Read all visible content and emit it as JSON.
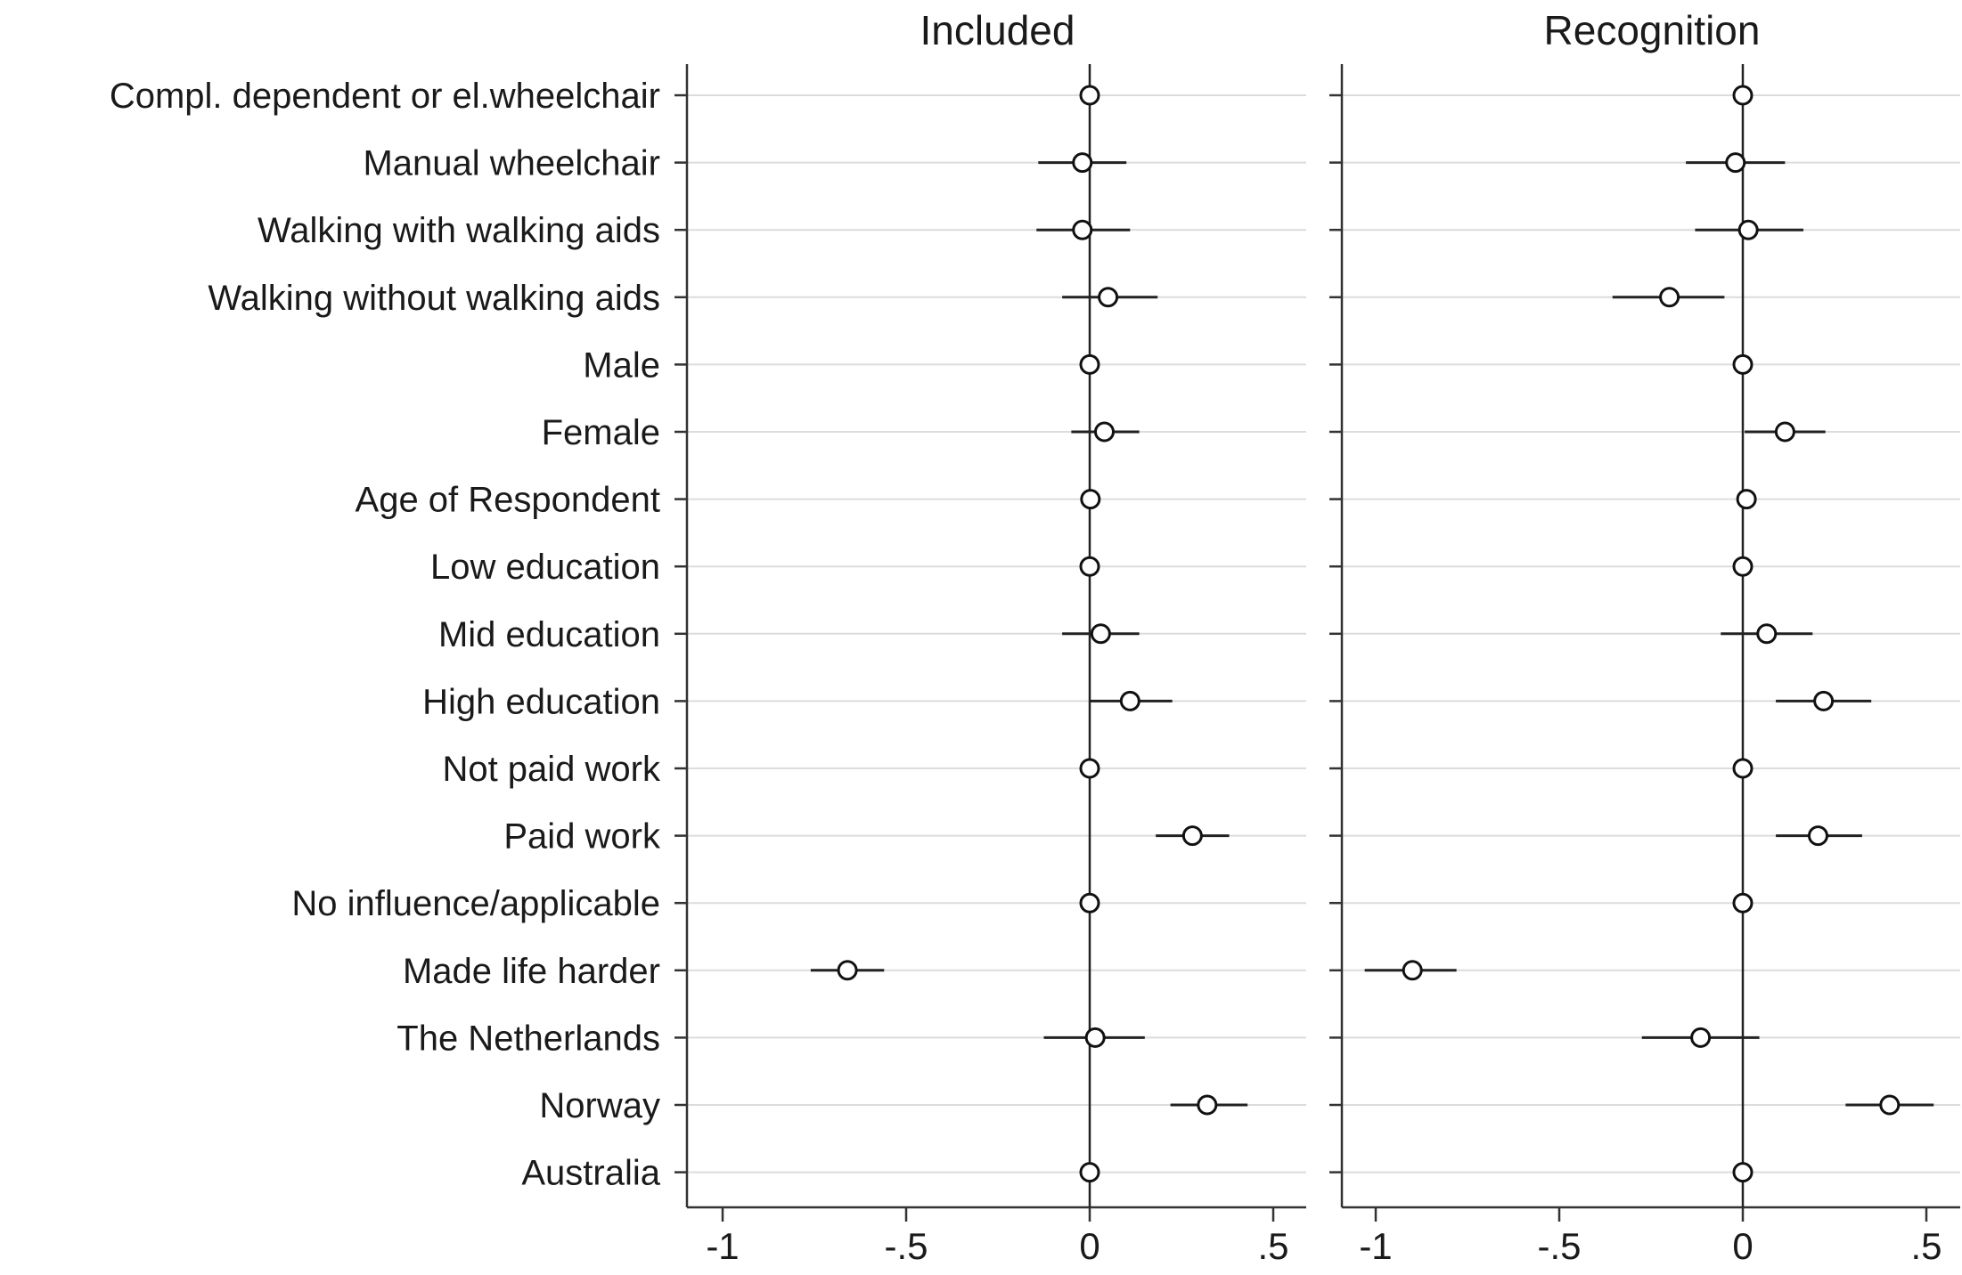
{
  "chart_data": {
    "type": "scatter",
    "subtype": "coefficient-plot",
    "categories": [
      "Compl. dependent or el.wheelchair",
      "Manual wheelchair",
      "Walking with walking aids",
      "Walking without walking aids",
      "Male",
      "Female",
      "Age of Respondent",
      "Low education",
      "Mid education",
      "High education",
      "Not paid work",
      "Paid work",
      "No influence/applicable",
      "Made life harder",
      "The Netherlands",
      "Norway",
      "Australia"
    ],
    "xlim": [
      -1.1,
      0.6
    ],
    "x_ticks": [
      -1,
      -0.5,
      0,
      0.5
    ],
    "x_tick_labels": [
      "-1",
      "-.5",
      "0",
      ".5"
    ],
    "grid": true,
    "reference_line": 0,
    "panels": [
      {
        "title": "Included",
        "estimates": [
          0,
          -0.02,
          -0.02,
          0.05,
          0,
          0.04,
          0.002,
          0,
          0.03,
          0.11,
          0,
          0.28,
          0,
          -0.66,
          0.015,
          0.32,
          0
        ],
        "ci_low": [
          0,
          -0.14,
          -0.145,
          -0.075,
          0,
          -0.05,
          -0.005,
          0,
          -0.075,
          0,
          0,
          0.18,
          0,
          -0.76,
          -0.125,
          0.22,
          0
        ],
        "ci_high": [
          0,
          0.1,
          0.11,
          0.185,
          0,
          0.135,
          0.01,
          0,
          0.135,
          0.225,
          0,
          0.38,
          0,
          -0.56,
          0.15,
          0.43,
          0
        ]
      },
      {
        "title": "Recognition",
        "estimates": [
          0,
          -0.02,
          0.015,
          -0.2,
          0,
          0.115,
          0.01,
          0,
          0.065,
          0.22,
          0,
          0.205,
          0,
          -0.9,
          -0.115,
          0.4,
          0
        ],
        "ci_low": [
          0,
          -0.155,
          -0.13,
          -0.355,
          0,
          0.005,
          0.003,
          0,
          -0.06,
          0.09,
          0,
          0.09,
          0,
          -1.03,
          -0.275,
          0.28,
          0
        ],
        "ci_high": [
          0,
          0.115,
          0.165,
          -0.05,
          0,
          0.225,
          0.017,
          0,
          0.19,
          0.35,
          0,
          0.325,
          0,
          -0.78,
          0.045,
          0.52,
          0
        ]
      }
    ]
  }
}
